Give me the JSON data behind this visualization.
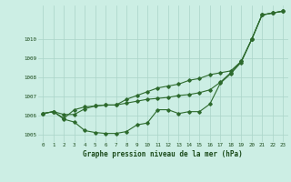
{
  "series1": [
    1006.1,
    1006.2,
    1005.8,
    1005.65,
    1005.2,
    1005.1,
    1005.05,
    1005.05,
    1005.15,
    1005.5,
    1005.6,
    1006.3,
    1006.3,
    1006.1,
    1006.2,
    1006.2,
    1006.6,
    1007.7,
    1008.2,
    1008.8,
    1010.0,
    1011.3,
    1011.4,
    1011.5
  ],
  "series3": [
    1006.1,
    1006.2,
    1005.85,
    1006.3,
    1006.45,
    1006.5,
    1006.55,
    1006.55,
    1006.65,
    1006.75,
    1006.85,
    1006.9,
    1006.95,
    1007.05,
    1007.1,
    1007.2,
    1007.35,
    1007.75,
    1008.25,
    1008.85,
    1010.0,
    1011.3,
    1011.4,
    1011.5
  ],
  "series4": [
    1006.1,
    1006.2,
    1006.05,
    1006.05,
    1006.35,
    1006.5,
    1006.55,
    1006.55,
    1006.85,
    1007.05,
    1007.25,
    1007.45,
    1007.55,
    1007.65,
    1007.85,
    1007.95,
    1008.15,
    1008.25,
    1008.35,
    1008.85,
    1010.0,
    1011.3,
    1011.4,
    1011.5
  ],
  "x": [
    0,
    1,
    2,
    3,
    4,
    5,
    6,
    7,
    8,
    9,
    10,
    11,
    12,
    13,
    14,
    15,
    16,
    17,
    18,
    19,
    20,
    21,
    22,
    23
  ],
  "xlabel": "Graphe pression niveau de la mer (hPa)",
  "ylim": [
    1004.6,
    1011.8
  ],
  "yticks": [
    1005,
    1006,
    1007,
    1008,
    1009,
    1010
  ],
  "xticks": [
    0,
    1,
    2,
    3,
    4,
    5,
    6,
    7,
    8,
    9,
    10,
    11,
    12,
    13,
    14,
    15,
    16,
    17,
    18,
    19,
    20,
    21,
    22,
    23
  ],
  "line_color": "#2d6a2d",
  "bg_color": "#cceee4",
  "grid_color": "#aad4c8",
  "text_color": "#1a4a1a",
  "marker": "D",
  "markersize": 1.8,
  "linewidth": 0.8,
  "xlabel_fontsize": 5.5,
  "tick_fontsize": 4.2
}
